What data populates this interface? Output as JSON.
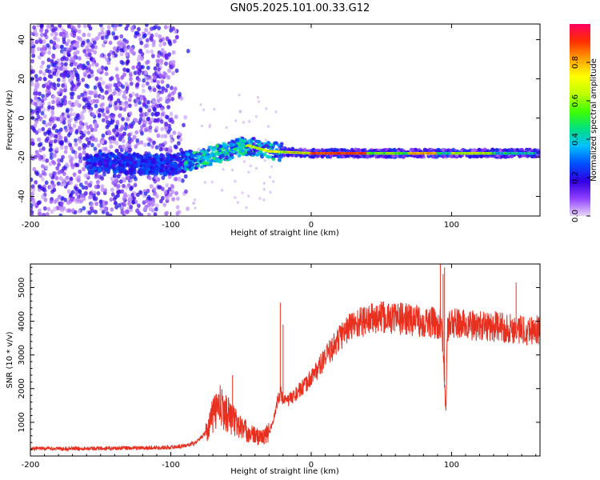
{
  "figure_title": "GN05.2025.101.00.33.G12",
  "chart_data": [
    {
      "type": "heatmap",
      "xlabel": "Height of straight line (km)",
      "ylabel": "Frequency (Hz)",
      "xlim": [
        -200,
        163
      ],
      "ylim": [
        -50,
        48
      ],
      "xticks": [
        -200,
        -100,
        0,
        100
      ],
      "yticks": [
        -40,
        -20,
        0,
        20,
        40
      ],
      "colorbar": {
        "label": "Normalized spectral amplitude",
        "range": [
          0,
          1
        ],
        "ticks": [
          0.0,
          0.2,
          0.4,
          0.6,
          0.8
        ],
        "colormap": [
          "#e8d8f8",
          "#9040ff",
          "#3000e0",
          "#0050ff",
          "#00c0ff",
          "#00e080",
          "#40ff00",
          "#c0ff00",
          "#ffff00",
          "#ffa000",
          "#ff3000",
          "#ff0060"
        ]
      },
      "features": {
        "noise_region_x": [
          -200,
          -87
        ],
        "signal_track_x": [
          -90,
          163
        ],
        "signal_track_freq_hz": -18,
        "rising_branch": [
          [
            -150,
            -23
          ],
          [
            -100,
            -24
          ],
          [
            -80,
            -21
          ],
          [
            -60,
            -17
          ],
          [
            -45,
            -14
          ],
          [
            -30,
            -17
          ],
          [
            0,
            -18
          ]
        ],
        "peak_core_x": [
          0,
          40
        ]
      }
    },
    {
      "type": "line",
      "xlabel": "Height of straight line (km)",
      "ylabel": "SNR (10 * v/v)",
      "xlim": [
        -200,
        163
      ],
      "ylim": [
        0,
        5700
      ],
      "xticks": [
        -200,
        -100,
        0,
        100
      ],
      "yticks": [
        1000,
        2000,
        3000,
        4000,
        5000
      ],
      "series": [
        {
          "color": "#e83020",
          "x": [
            -200,
            -180,
            -160,
            -140,
            -120,
            -100,
            -90,
            -82,
            -75,
            -70,
            -66,
            -62,
            -58,
            -54,
            -50,
            -45,
            -40,
            -35,
            -30,
            -27,
            -25,
            -22,
            -20,
            -18,
            -15,
            -12,
            -8,
            -4,
            0,
            5,
            10,
            15,
            20,
            25,
            30,
            40,
            50,
            60,
            70,
            80,
            88,
            92,
            94,
            95,
            96,
            97,
            100,
            110,
            120,
            130,
            140,
            150,
            163
          ],
          "y": [
            220,
            220,
            230,
            230,
            240,
            260,
            300,
            400,
            700,
            1200,
            1500,
            1350,
            1200,
            1000,
            850,
            700,
            600,
            550,
            700,
            1000,
            1500,
            1900,
            1700,
            1600,
            1700,
            1800,
            1950,
            2100,
            2350,
            2600,
            2900,
            3200,
            3500,
            3750,
            3900,
            4050,
            4100,
            4100,
            4050,
            4000,
            3950,
            3900,
            3400,
            2200,
            1200,
            3800,
            3950,
            3900,
            3850,
            3850,
            3800,
            3750,
            3750
          ],
          "spikes": [
            [
              -56,
              2400
            ],
            [
              -22,
              4550
            ],
            [
              -20,
              3900
            ],
            [
              92,
              5700
            ],
            [
              94,
              5400
            ],
            [
              95,
              5600
            ],
            [
              146,
              5150
            ]
          ]
        }
      ]
    }
  ]
}
